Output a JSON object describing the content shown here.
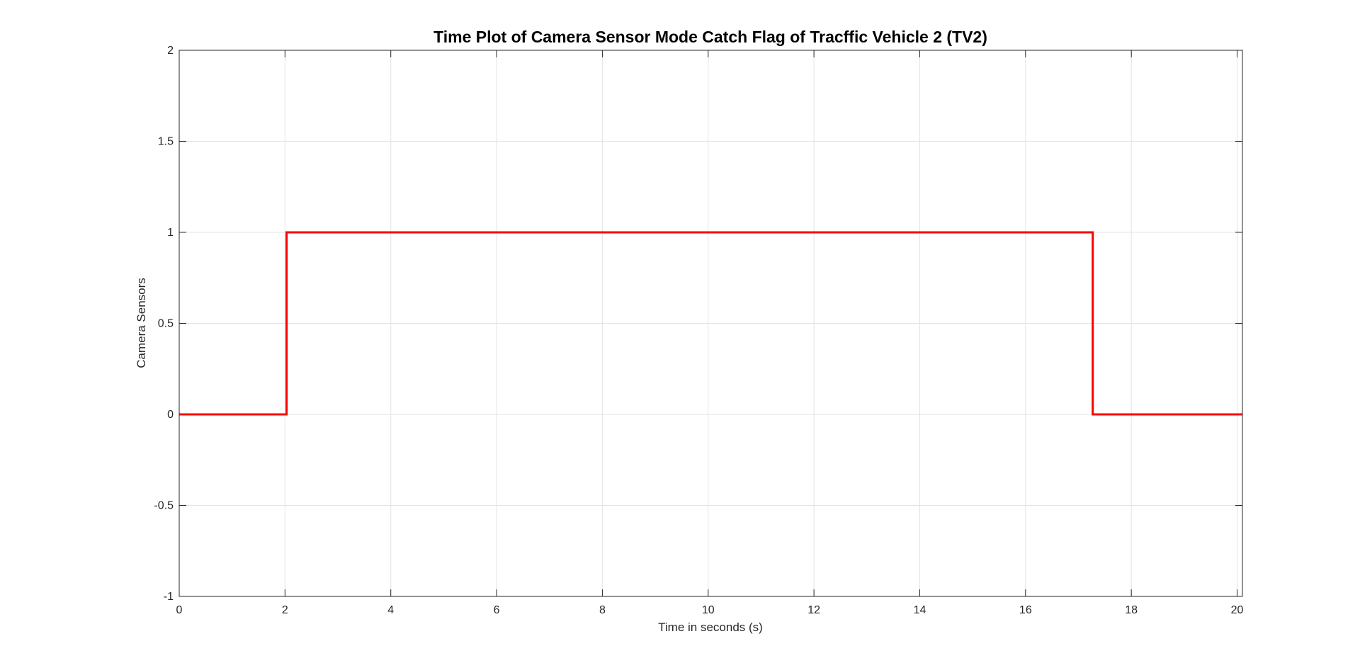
{
  "chart_data": {
    "type": "line",
    "title": "Time Plot of Camera Sensor Mode Catch Flag of Tracffic Vehicle 2 (TV2)",
    "xlabel": "Time in seconds (s)",
    "ylabel": "Camera Sensors",
    "xlim": [
      0,
      20.1
    ],
    "ylim": [
      -1,
      2
    ],
    "xticks": [
      0,
      2,
      4,
      6,
      8,
      10,
      12,
      14,
      16,
      18,
      20
    ],
    "yticks": [
      -1,
      -0.5,
      0,
      0.5,
      1,
      1.5,
      2
    ],
    "xtick_labels": [
      "0",
      "2",
      "4",
      "6",
      "8",
      "10",
      "12",
      "14",
      "16",
      "18",
      "20"
    ],
    "ytick_labels": [
      "-1",
      "-0.5",
      "0",
      "0.5",
      "1",
      "1.5",
      "2"
    ],
    "grid": true,
    "series": [
      {
        "color": "#ff0000",
        "style": "step",
        "x": [
          0,
          2.03,
          2.03,
          17.27,
          17.27,
          20.1
        ],
        "y": [
          0,
          0,
          1,
          1,
          0,
          0
        ]
      }
    ]
  }
}
